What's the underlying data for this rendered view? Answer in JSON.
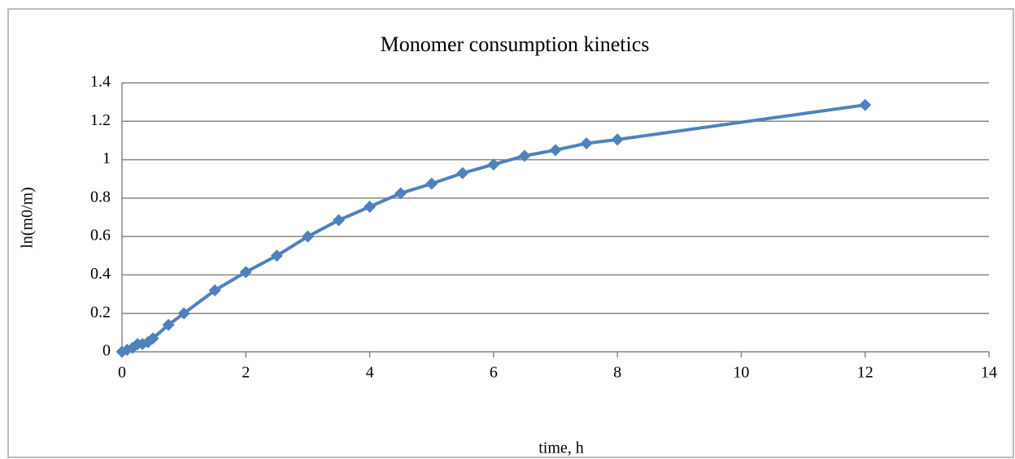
{
  "chart_data": {
    "type": "line",
    "title": "Monomer consumption kinetics",
    "xlabel": "time, h",
    "ylabel": "ln(m0/m)",
    "x": [
      0,
      0.083,
      0.17,
      0.25,
      0.33,
      0.42,
      0.5,
      0.75,
      1,
      1.5,
      2,
      2.5,
      3,
      3.5,
      4,
      4.5,
      5,
      5.5,
      6,
      6.5,
      7,
      7.5,
      8,
      12
    ],
    "series": [
      {
        "name": "ln(m0/m)",
        "color": "#4f81bd",
        "values": [
          0,
          0.01,
          0.02,
          0.04,
          0.04,
          0.05,
          0.07,
          0.14,
          0.2,
          0.32,
          0.415,
          0.5,
          0.6,
          0.685,
          0.755,
          0.825,
          0.875,
          0.93,
          0.975,
          1.02,
          1.05,
          1.085,
          1.105,
          1.285
        ]
      }
    ],
    "xlim": [
      0,
      14
    ],
    "xticks": [
      0,
      2,
      4,
      6,
      8,
      10,
      12,
      14
    ],
    "ylim": [
      0,
      1.4
    ],
    "yticks": [
      0,
      0.2,
      0.4,
      0.6,
      0.8,
      1,
      1.2,
      1.4
    ],
    "grid": true
  }
}
